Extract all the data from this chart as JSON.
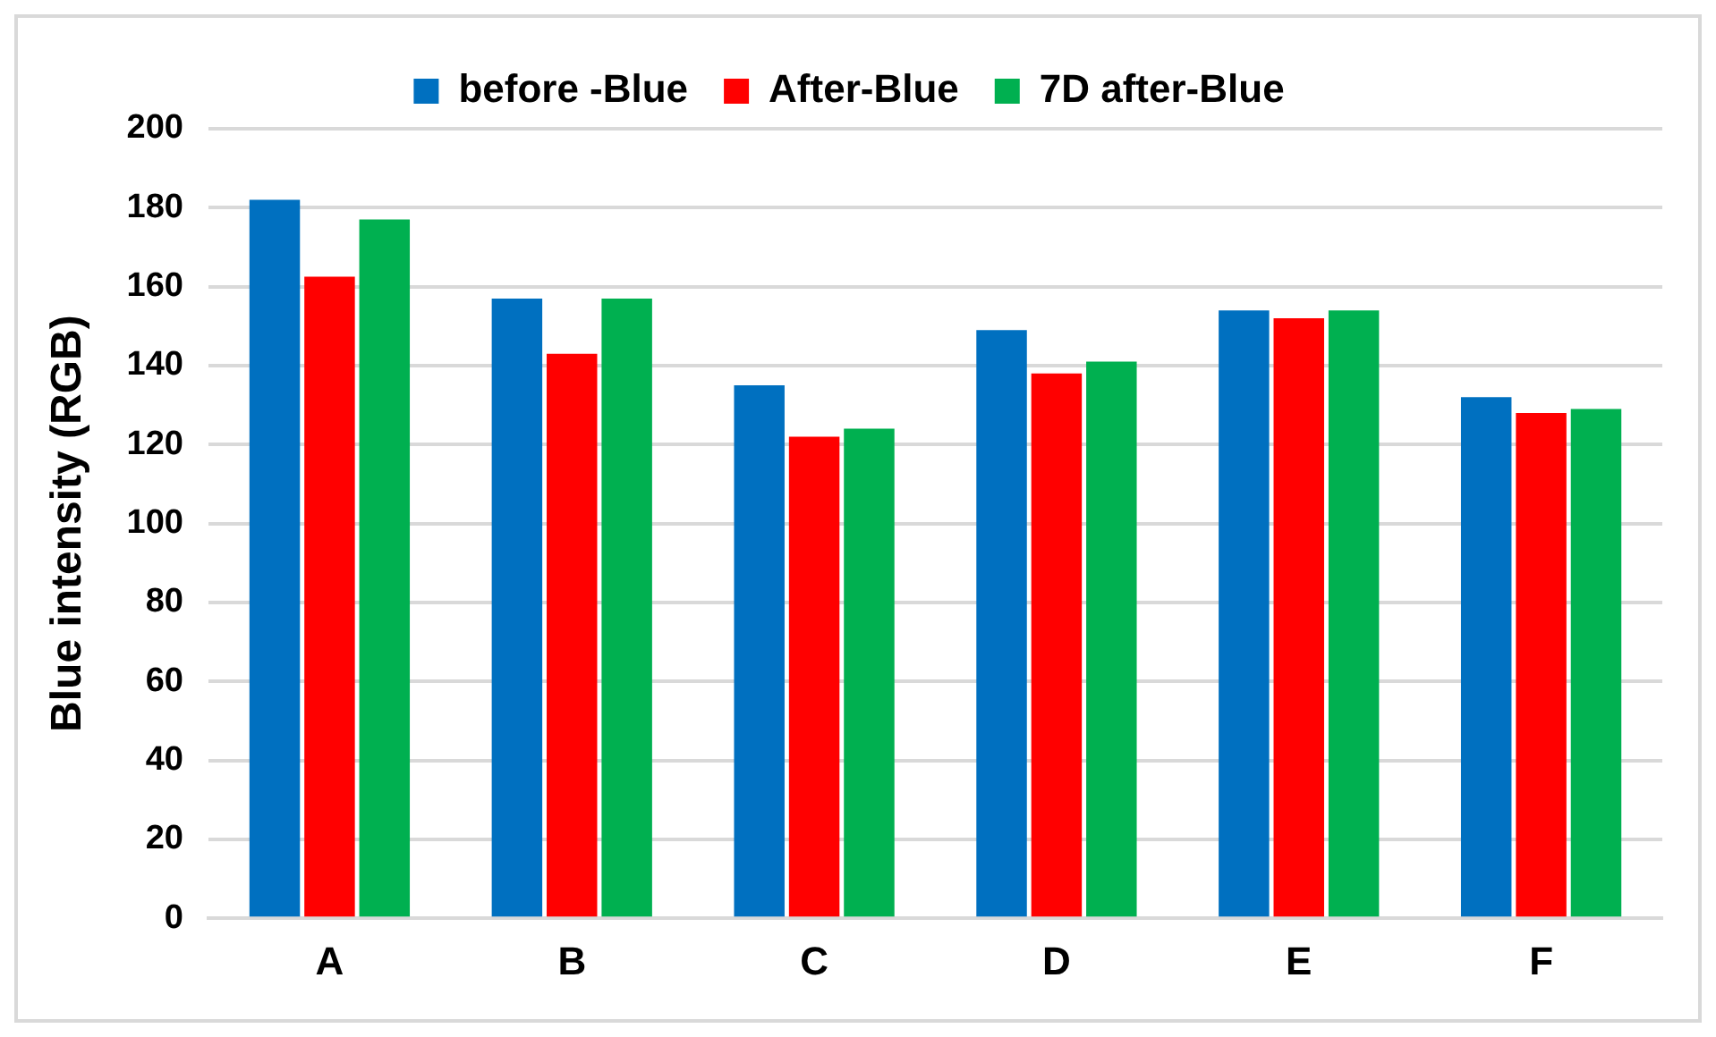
{
  "chart_data": {
    "type": "bar",
    "ylabel": "Blue intensity (RGB)",
    "categories": [
      "A",
      "B",
      "C",
      "D",
      "E",
      "F"
    ],
    "series": [
      {
        "name": "before -Blue",
        "color": "#0070c0",
        "values": [
          182,
          157,
          135,
          149,
          154,
          132
        ]
      },
      {
        "name": "After-Blue",
        "color": "#ff0000",
        "values": [
          162.5,
          143,
          122,
          138,
          152,
          128
        ]
      },
      {
        "name": "7D after-Blue",
        "color": "#00b050",
        "values": [
          177,
          157,
          124,
          141,
          154,
          129
        ]
      }
    ],
    "ylim": [
      0,
      200
    ],
    "yticks": [
      0,
      20,
      40,
      60,
      80,
      100,
      120,
      140,
      160,
      180,
      200
    ],
    "grid": "y",
    "legend": "top"
  }
}
